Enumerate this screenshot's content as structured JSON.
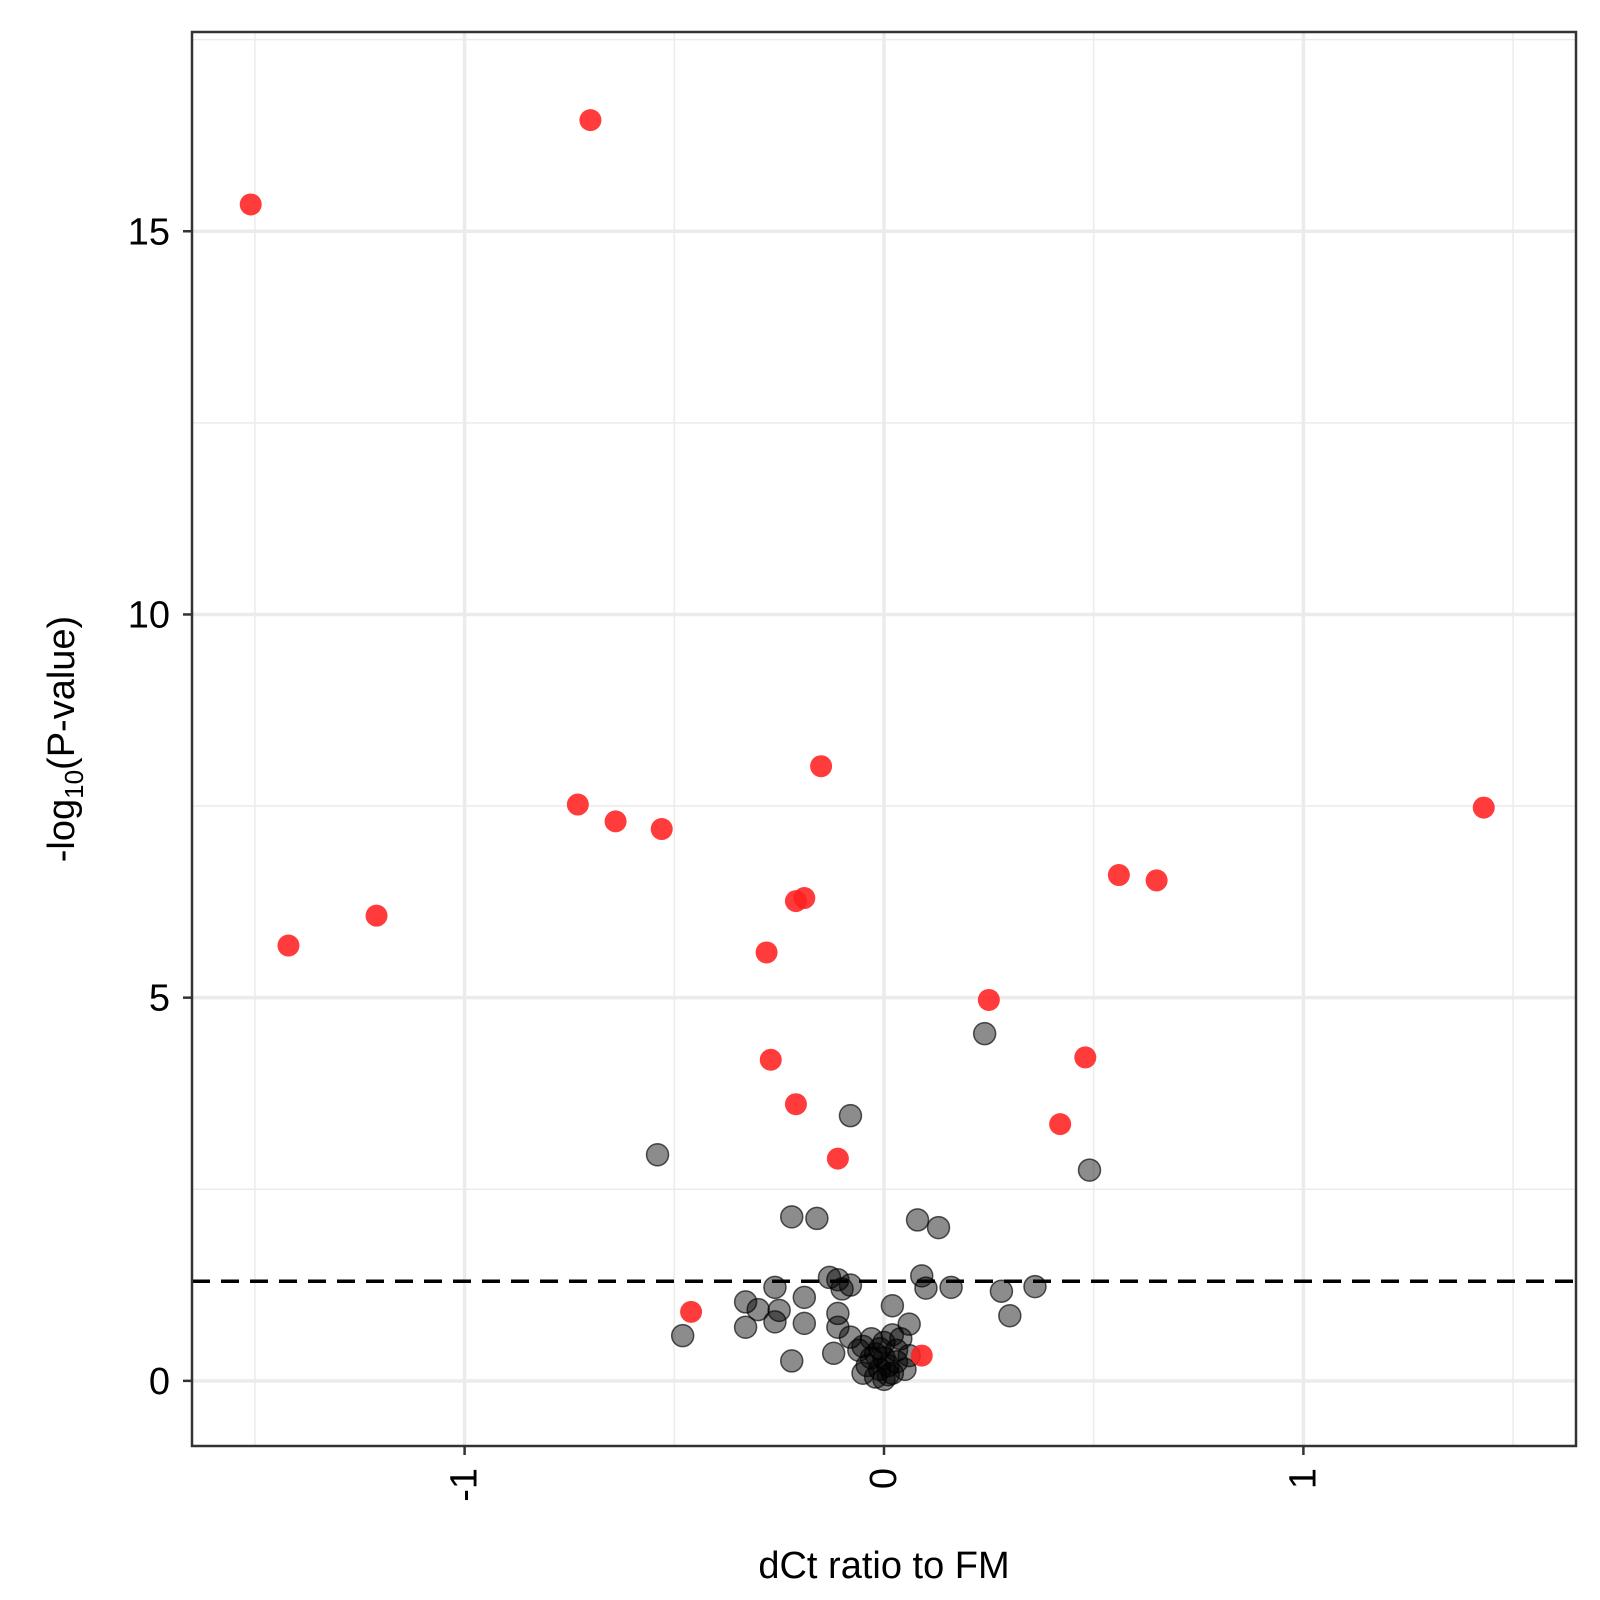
{
  "chart_data": {
    "type": "scatter",
    "title": "",
    "xlabel": "dCt ratio to FM",
    "ylabel": {
      "prefix": "-log",
      "subscript": "10",
      "suffix": "(P-value)"
    },
    "xlim": [
      -1.65,
      1.65
    ],
    "ylim": [
      -0.85,
      17.6
    ],
    "x_ticks": [
      -1,
      0,
      1
    ],
    "x_tick_labels": [
      "-1",
      "0",
      "1"
    ],
    "y_ticks": [
      0,
      5,
      10,
      15
    ],
    "y_tick_labels": [
      "0",
      "5",
      "10",
      "15"
    ],
    "grid": true,
    "threshold_y": 1.3,
    "colors": {
      "significant": "#ff2020",
      "nonsignificant": "#000000",
      "threshold": "#000000",
      "grid": "#ebebeb",
      "panel_border": "#333333"
    },
    "series": [
      {
        "points": [
          [
            -1.51,
            15.35
          ],
          [
            -0.7,
            16.45
          ],
          [
            -1.42,
            5.68
          ],
          [
            -1.21,
            6.07
          ],
          [
            -0.73,
            7.52
          ],
          [
            -0.64,
            7.3
          ],
          [
            -0.53,
            7.2
          ],
          [
            -0.15,
            8.02
          ],
          [
            -0.19,
            6.3
          ],
          [
            -0.21,
            6.26
          ],
          [
            -0.28,
            5.59
          ],
          [
            -0.27,
            4.19
          ],
          [
            -0.21,
            3.61
          ],
          [
            -0.11,
            2.9
          ],
          [
            0.25,
            4.97
          ],
          [
            0.48,
            4.22
          ],
          [
            0.42,
            3.35
          ],
          [
            0.56,
            6.6
          ],
          [
            0.65,
            6.53
          ],
          [
            1.43,
            7.48
          ],
          [
            -0.46,
            0.9
          ],
          [
            0.09,
            0.33
          ]
        ]
      },
      {
        "points": [
          [
            -0.54,
            2.95
          ],
          [
            -0.08,
            3.46
          ],
          [
            0.24,
            4.53
          ],
          [
            0.49,
            2.75
          ],
          [
            -0.22,
            2.14
          ],
          [
            -0.16,
            2.12
          ],
          [
            0.08,
            2.1
          ],
          [
            0.13,
            2.0
          ],
          [
            -0.13,
            1.35
          ],
          [
            -0.11,
            1.32
          ],
          [
            -0.08,
            1.25
          ],
          [
            -0.1,
            1.2
          ],
          [
            -0.26,
            1.22
          ],
          [
            0.09,
            1.37
          ],
          [
            0.1,
            1.21
          ],
          [
            0.16,
            1.22
          ],
          [
            0.28,
            1.17
          ],
          [
            0.36,
            1.23
          ],
          [
            0.3,
            0.85
          ],
          [
            -0.33,
            1.03
          ],
          [
            -0.3,
            0.93
          ],
          [
            -0.25,
            0.92
          ],
          [
            -0.26,
            0.77
          ],
          [
            -0.19,
            1.09
          ],
          [
            -0.11,
            0.88
          ],
          [
            -0.11,
            0.7
          ],
          [
            -0.08,
            0.57
          ],
          [
            0.02,
            0.98
          ],
          [
            0.06,
            0.74
          ],
          [
            -0.19,
            0.75
          ],
          [
            -0.33,
            0.7
          ],
          [
            -0.48,
            0.59
          ],
          [
            -0.22,
            0.26
          ],
          [
            -0.12,
            0.36
          ],
          [
            -0.05,
            0.45
          ],
          [
            0.0,
            0.5
          ],
          [
            0.03,
            0.4
          ],
          [
            -0.03,
            0.3
          ],
          [
            0.01,
            0.2
          ],
          [
            -0.01,
            0.15
          ],
          [
            0.02,
            0.1
          ],
          [
            -0.02,
            0.05
          ],
          [
            0.0,
            0.02
          ],
          [
            0.03,
            0.25
          ],
          [
            -0.04,
            0.2
          ],
          [
            0.05,
            0.15
          ],
          [
            -0.02,
            0.35
          ],
          [
            0.04,
            0.55
          ],
          [
            -0.05,
            0.1
          ],
          [
            0.0,
            0.3
          ],
          [
            0.06,
            0.33
          ],
          [
            -0.06,
            0.4
          ],
          [
            0.02,
            0.6
          ],
          [
            -0.03,
            0.55
          ],
          [
            0.01,
            0.08
          ],
          [
            -0.01,
            0.42
          ]
        ]
      }
    ]
  }
}
